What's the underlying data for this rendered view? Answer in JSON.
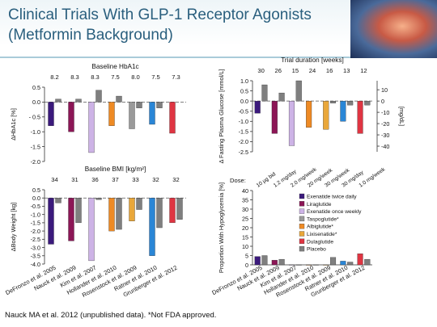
{
  "slide": {
    "title_line1": "Clinical Trials With GLP-1 Receptor Agonists",
    "title_line2": "(Metformin Background)",
    "footnote": "Nauck MA et al. 2012 (unpublished data).   *Not FDA approved."
  },
  "colors": {
    "Exenatide twice daily": "#3b1a7c",
    "Liraglutide": "#8c1656",
    "Exenatide once weekly": "#cdb3e6",
    "Taspoglutide*": "#9a9a9a",
    "Albiglutide*": "#ee8a24",
    "Lixisenatide*": "#e9a73a",
    "Dulaglutide": "#df3542",
    "Placebo": "#7f7f7f",
    "Comparator_blue": "#2a86d6"
  },
  "chart_data": [
    {
      "type": "bar",
      "panel": "hba1c",
      "title": "Baseline HbA1c",
      "title_sub": "[%]",
      "ylabel": "ΔHbA1c [%]",
      "top_labels": [
        "8.2",
        "8.3",
        "8.3",
        "7.5",
        "8.0",
        "7.5",
        "7.3"
      ],
      "categories": [
        "DeFronzo et al. 2005",
        "Nauck et al. 2009",
        "Kim et al. 2007",
        "Hollander et al. 2010",
        "Rosenstock et al. 2009",
        "Ratner et al. 2010",
        "Grunberger et al. 2012"
      ],
      "ylim": [
        -2.0,
        0.5
      ],
      "yticks": [
        0.5,
        0,
        -0.5,
        -1.0,
        -1.5,
        -2.0
      ],
      "ytick_labels": [
        "0.5",
        "0.0",
        "- 0.5",
        "-1.0",
        "-1.5",
        "-2.0"
      ],
      "groups": [
        {
          "active": "Exenatide twice daily",
          "value": -0.8,
          "placebo": 0.1
        },
        {
          "active": "Liraglutide",
          "value": -1.0,
          "placebo": 0.1
        },
        {
          "active": "Exenatide once weekly",
          "value": -1.7,
          "placebo": 0.4
        },
        {
          "active": "Albiglutide*",
          "value": -0.8,
          "placebo": 0.2
        },
        {
          "active": "Taspoglutide*",
          "value": -0.9,
          "placebo": -0.2
        },
        {
          "active": "Comparator_blue",
          "value": -0.75,
          "placebo": -0.2
        },
        {
          "active": "Dulaglutide",
          "value": -1.05,
          "placebo": null
        }
      ]
    },
    {
      "type": "bar",
      "panel": "fpg",
      "title": "Trial duration [weeks]",
      "ylabel": "Δ Fasting Plasma Glucose [mmol/L]",
      "ylabel_right": "[mg/dL]",
      "top_labels": [
        "30",
        "26",
        "15",
        "24",
        "16",
        "13",
        "12"
      ],
      "categories": [
        "DeFronzo et al. 2005",
        "Nauck et al. 2009",
        "Kim et al. 2007",
        "Hollander et al. 2010",
        "Rosenstock et al. 2009",
        "Ratner et al. 2010",
        "Grunberger et al. 2012"
      ],
      "ylim": [
        -2.5,
        1.0
      ],
      "yticks": [
        1.0,
        0.5,
        0,
        -0.5,
        -1.0,
        -1.5,
        -2.0,
        -2.5
      ],
      "ytick_labels": [
        "1.0",
        "0.5",
        "0.0",
        "-0.5",
        "-1.0",
        "-1.5",
        "-2.0",
        "-2.5"
      ],
      "right_ticks": [
        10,
        0,
        -10,
        -20,
        -30,
        -40
      ],
      "right_tick_labels": [
        "10",
        "0",
        "-10",
        "-20",
        "-30",
        "-40"
      ],
      "groups": [
        {
          "active": "Exenatide twice daily",
          "value": -0.6,
          "placebo": 0.8
        },
        {
          "active": "Liraglutide",
          "value": -1.6,
          "placebo": 0.4
        },
        {
          "active": "Exenatide once weekly",
          "value": -2.2,
          "placebo": 1.0
        },
        {
          "active": "Albiglutide*",
          "value": -1.3,
          "placebo": null
        },
        {
          "active": "Lixisenatide*",
          "value": -1.4,
          "placebo": -0.1
        },
        {
          "active": "Comparator_blue",
          "value": -1.0,
          "placebo": -0.2
        },
        {
          "active": "Dulaglutide",
          "value": -1.6,
          "placebo": -0.2
        }
      ]
    },
    {
      "type": "bar",
      "panel": "weight",
      "title": "Baseline BMI [kg/m²]",
      "ylabel": "ΔBody Weight [kg]",
      "top_labels": [
        "34",
        "31",
        "36",
        "37",
        "33",
        "32",
        "32"
      ],
      "categories": [
        "DeFronzo et al. 2005",
        "Nauck et al. 2009",
        "Kim et al. 2007",
        "Hollander et al. 2010",
        "Rosenstock et al. 2009",
        "Ratner et al. 2010",
        "Grunberger et al. 2012"
      ],
      "ylim": [
        -4.0,
        0.5
      ],
      "yticks": [
        0.5,
        0,
        -0.5,
        -1.0,
        -1.5,
        -2.0,
        -2.5,
        -3.0,
        -3.5,
        -4.0
      ],
      "ytick_labels": [
        "0.5",
        "0.0",
        "-0.5",
        "-1.0",
        "-1.5",
        "-2.0",
        "-2.5",
        "-3.0",
        "-3.5",
        "-4.0"
      ],
      "groups": [
        {
          "active": "Exenatide twice daily",
          "value": -2.8,
          "placebo": -0.3
        },
        {
          "active": "Liraglutide",
          "value": -2.6,
          "placebo": -1.5
        },
        {
          "active": "Exenatide once weekly",
          "value": -3.8,
          "placebo": -0.1
        },
        {
          "active": "Albiglutide*",
          "value": -2.0,
          "placebo": -1.9
        },
        {
          "active": "Lixisenatide*",
          "value": -1.4,
          "placebo": -0.7
        },
        {
          "active": "Comparator_blue",
          "value": -3.5,
          "placebo": -1.8
        },
        {
          "active": "Dulaglutide",
          "value": -1.5,
          "placebo": -1.3
        }
      ]
    },
    {
      "type": "bar",
      "panel": "hypo",
      "title": "Dose:",
      "ylabel": "Proportion With Hypoglycemia [%]",
      "dose_labels": [
        "10 µg bid",
        "1.2 mg/day",
        "2.0 mg/week",
        "20 mg/week",
        "30 mg/week",
        "30 mg/day",
        "1.0 mg/week"
      ],
      "categories": [
        "DeFronzo et al. 2005",
        "Nauck et al. 2009",
        "Kim et al. 2007",
        "Hollander et al. 2010",
        "Rosenstock et al. 2009",
        "Ratner et al. 2010",
        "Grunberger et al. 2012"
      ],
      "ylim": [
        0,
        40
      ],
      "yticks": [
        40,
        35,
        30,
        25,
        20,
        15,
        10,
        5,
        0
      ],
      "ytick_labels": [
        "40",
        "35",
        "30",
        "25",
        "20",
        "15",
        "10",
        "5",
        "0"
      ],
      "groups": [
        {
          "active": "Exenatide twice daily",
          "value": 4.5,
          "placebo": 5.0
        },
        {
          "active": "Liraglutide",
          "value": 2.5,
          "placebo": 3.0
        },
        {
          "active": "Exenatide once weekly",
          "value": 0,
          "placebo": 0
        },
        {
          "active": "Albiglutide*",
          "value": 0,
          "placebo": 0
        },
        {
          "active": "Lixisenatide*",
          "value": 0,
          "placebo": 4.0
        },
        {
          "active": "Comparator_blue",
          "value": 2.0,
          "placebo": 1.5
        },
        {
          "active": "Dulaglutide",
          "value": 6.0,
          "placebo": 3.0
        }
      ],
      "legend": [
        "Exenatide twice daily",
        "Liraglutide",
        "Exenatide once weekly",
        "Taspoglutide*",
        "Albiglutide*",
        "Lixisenatide*",
        "Dulaglutide",
        "Placebo"
      ]
    }
  ]
}
